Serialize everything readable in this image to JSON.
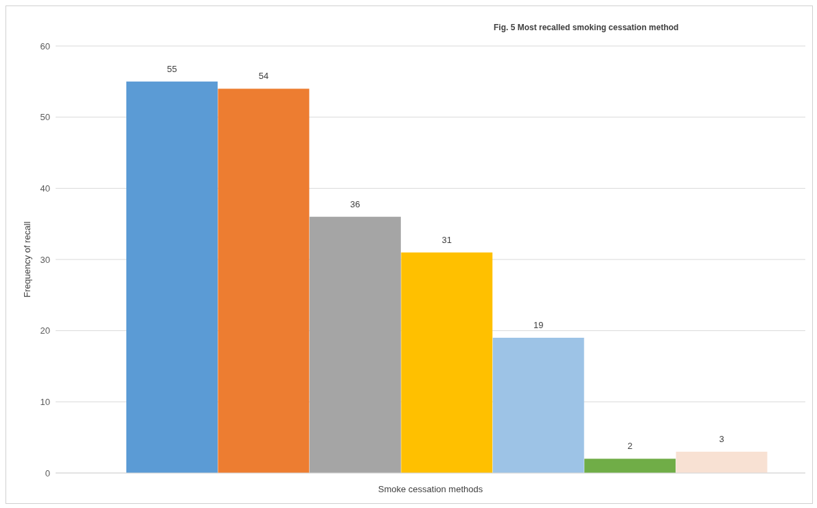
{
  "chart_data": {
    "type": "bar",
    "title": "Fig. 5 Most recalled smoking cessation method",
    "xlabel": "Smoke cessation methods",
    "ylabel": "Frequency of recall",
    "categories": [
      null,
      null,
      null,
      null,
      null,
      null,
      null
    ],
    "values": [
      55,
      54,
      36,
      31,
      19,
      2,
      3
    ],
    "colors": [
      "#5b9bd5",
      "#ed7d31",
      "#a5a5a5",
      "#ffc000",
      "#9dc3e6",
      "#70ad47",
      "#f8e1d3"
    ],
    "ylim": [
      0,
      60
    ],
    "yticks": [
      0,
      10,
      20,
      30,
      40,
      50,
      60
    ],
    "grid": "y",
    "data_labels": true
  }
}
